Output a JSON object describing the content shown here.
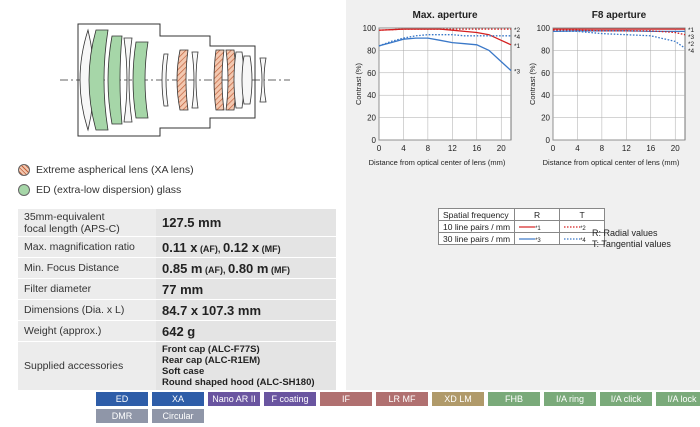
{
  "legend": {
    "xa": "Extreme aspherical lens (XA lens)",
    "ed": "ED (extra-low dispersion) glass"
  },
  "specs": [
    {
      "label": "35mm-equivalent focal length (APS-C)",
      "value": "127.5 mm"
    },
    {
      "label": "Max. magnification ratio",
      "value": "0.11 x (AF), 0.12 x (MF)"
    },
    {
      "label": "Min. Focus Distance",
      "value": "0.85 m (AF), 0.80 m (MF)"
    },
    {
      "label": "Filter diameter",
      "value": "77 mm"
    },
    {
      "label": "Dimensions (Dia. x L)",
      "value": "84.7 x 107.3 mm"
    },
    {
      "label": "Weight (approx.)",
      "value": "642 g"
    }
  ],
  "spec_text": {
    "focal_label_1": "35mm-equivalent",
    "focal_label_2": "focal length (APS-C)",
    "focal_value": "127.5 mm",
    "mag_label": "Max. magnification ratio",
    "mag_v1": "0.11 x",
    "mag_af": " (AF), ",
    "mag_v2": "0.12 x",
    "mag_mf": " (MF)",
    "mfd_label": "Min. Focus Distance",
    "mfd_v1": "0.85 m",
    "mfd_af": " (AF), ",
    "mfd_v2": "0.80 m",
    "mfd_mf": " (MF)",
    "filter_label": "Filter diameter",
    "filter_value": "77 mm",
    "dim_label": "Dimensions (Dia. x L)",
    "dim_value": "84.7 x 107.3 mm",
    "weight_label": "Weight (approx.)",
    "weight_value": "642 g",
    "acc_label": "Supplied accessories",
    "acc_items": [
      "Front cap (ALC-F77S)",
      "Rear cap (ALC-R1EM)",
      "Soft case",
      "Round shaped hood (ALC-SH180)"
    ]
  },
  "badges": [
    {
      "label": "ED",
      "color": "#2e5da8"
    },
    {
      "label": "XA",
      "color": "#2e5da8"
    },
    {
      "label": "Nano AR II",
      "color": "#6a55a0"
    },
    {
      "label": "F coating",
      "color": "#6a55a0"
    },
    {
      "label": "IF",
      "color": "#b07070"
    },
    {
      "label": "LR MF",
      "color": "#b07070"
    },
    {
      "label": "XD LM",
      "color": "#b09a6a"
    },
    {
      "label": "FHB",
      "color": "#7aaa7a"
    },
    {
      "label": "I/A ring",
      "color": "#7aaa7a"
    },
    {
      "label": "I/A click",
      "color": "#7aaa7a"
    },
    {
      "label": "I/A lock",
      "color": "#7aaa7a"
    },
    {
      "label": "DMR",
      "color": "#8f96a8"
    },
    {
      "label": "Circular",
      "color": "#8f96a8"
    }
  ],
  "spatial_table": {
    "header": [
      "Spatial frequency",
      "R",
      "T"
    ],
    "rows": [
      {
        "label": "10 line pairs / mm",
        "r": "*1",
        "t": "*2"
      },
      {
        "label": "30 line pairs / mm",
        "r": "*3",
        "t": "*4"
      }
    ],
    "note_r": "R: Radial values",
    "note_t": "T: Tangential values"
  },
  "chart_data": [
    {
      "type": "line",
      "title": "Max. aperture",
      "xlabel": "Distance from optical center of lens (mm)",
      "ylabel": "Contrast (%)",
      "xlim": [
        0,
        21.6
      ],
      "ylim": [
        0,
        100
      ],
      "xticks": [
        0,
        4,
        8,
        12,
        16,
        20
      ],
      "yticks": [
        0,
        20,
        40,
        60,
        80,
        100
      ],
      "grid": true,
      "series": [
        {
          "name": "*1",
          "color": "#d42020",
          "dash": false,
          "x": [
            0,
            2,
            4,
            6,
            8,
            10,
            12,
            14,
            16,
            18,
            20,
            21.6
          ],
          "y": [
            98,
            98.5,
            99,
            99,
            99,
            99,
            98,
            97,
            96,
            94,
            89,
            85
          ]
        },
        {
          "name": "*2",
          "color": "#d42020",
          "dash": true,
          "x": [
            0,
            2,
            4,
            6,
            8,
            10,
            12,
            14,
            16,
            18,
            20,
            21.6
          ],
          "y": [
            98,
            98.5,
            99,
            99,
            99,
            99,
            99,
            99,
            99,
            99,
            99,
            99
          ]
        },
        {
          "name": "*3",
          "color": "#3a78c8",
          "dash": false,
          "x": [
            0,
            2,
            4,
            6,
            8,
            10,
            12,
            14,
            16,
            18,
            20,
            21.6
          ],
          "y": [
            84,
            87,
            90,
            91,
            91,
            89,
            87,
            86,
            85,
            80,
            70,
            62
          ]
        },
        {
          "name": "*4",
          "color": "#3a78c8",
          "dash": true,
          "x": [
            0,
            2,
            4,
            6,
            8,
            10,
            12,
            14,
            16,
            18,
            20,
            21.6
          ],
          "y": [
            84,
            88,
            91,
            93,
            94,
            94,
            94,
            93,
            93,
            93,
            93,
            93
          ]
        }
      ]
    },
    {
      "type": "line",
      "title": "F8 aperture",
      "xlabel": "Distance from optical center of lens (mm)",
      "ylabel": "Contrast (%)",
      "xlim": [
        0,
        21.6
      ],
      "ylim": [
        0,
        100
      ],
      "xticks": [
        0,
        4,
        8,
        12,
        16,
        20
      ],
      "yticks": [
        0,
        20,
        40,
        60,
        80,
        100
      ],
      "grid": true,
      "series": [
        {
          "name": "*1",
          "color": "#d42020",
          "dash": false,
          "x": [
            0,
            4,
            8,
            12,
            16,
            20,
            21.6
          ],
          "y": [
            99,
            99,
            99,
            99,
            99,
            99,
            99
          ]
        },
        {
          "name": "*3",
          "color": "#3a78c8",
          "dash": false,
          "x": [
            0,
            4,
            8,
            12,
            16,
            20,
            21.6
          ],
          "y": [
            97,
            97.5,
            97.5,
            97.5,
            97,
            97,
            97
          ]
        },
        {
          "name": "*2",
          "color": "#d42020",
          "dash": true,
          "x": [
            0,
            4,
            8,
            12,
            16,
            20,
            21.6
          ],
          "y": [
            98,
            98,
            97.5,
            97.5,
            97.5,
            96,
            94
          ]
        },
        {
          "name": "*4",
          "color": "#3a78c8",
          "dash": true,
          "x": [
            0,
            4,
            8,
            12,
            16,
            20,
            21.6
          ],
          "y": [
            97,
            97,
            95,
            94,
            93,
            88,
            82
          ]
        }
      ]
    }
  ]
}
